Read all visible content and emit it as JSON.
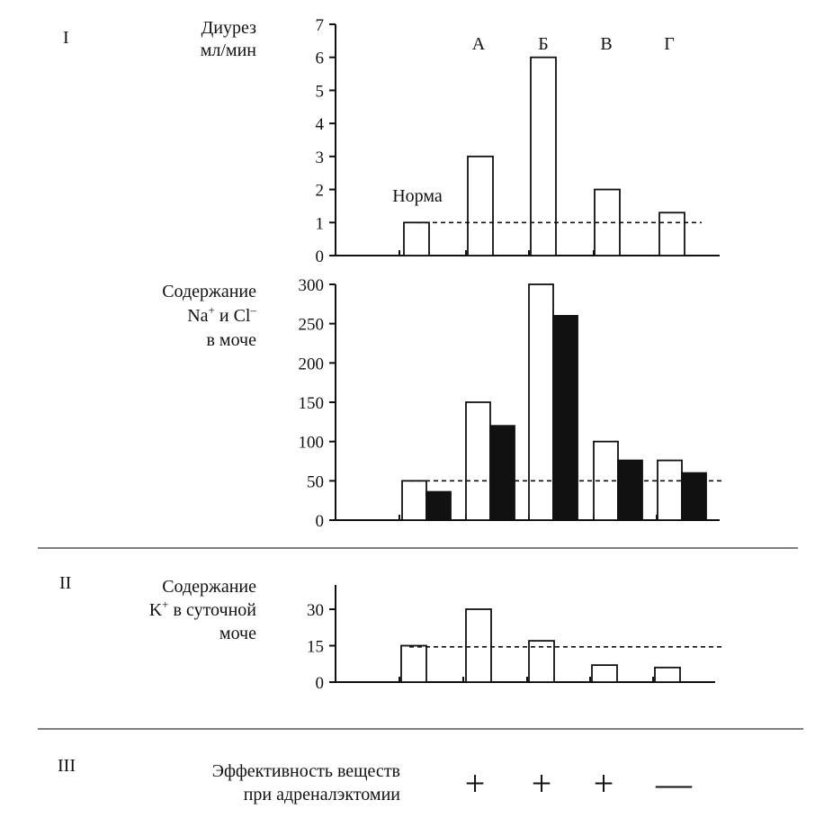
{
  "sections": {
    "one": "I",
    "two": "II",
    "three": "III"
  },
  "panel1": {
    "ylabel_line1": "Диурез",
    "ylabel_line2": "мл/мин",
    "baseline_label": "Норма",
    "group_labels": [
      "А",
      "Б",
      "В",
      "Г"
    ],
    "fills": {
      "white": "#ffffff",
      "black": "#111111"
    }
  },
  "panel2": {
    "ylabel_line1": "Содержание",
    "ylabel_line2_na": "Na",
    "ylabel_line2_sup1": "+",
    "ylabel_line2_mid": " и Cl",
    "ylabel_line2_sup2": "–",
    "ylabel_line3": "в моче"
  },
  "panel3": {
    "ylabel_line1": "Содержание",
    "ylabel_line2_k": "K",
    "ylabel_line2_sup": "+",
    "ylabel_line2_rest": " в  суточной",
    "ylabel_line3": "моче"
  },
  "effectiveness": {
    "label_line1": "Эффективность веществ",
    "label_line2": "при адреналэктомии",
    "marks": [
      "+",
      "+",
      "+",
      "—"
    ]
  },
  "chart_data": [
    {
      "type": "bar",
      "categories": [
        "Норма",
        "А",
        "Б",
        "В",
        "Г"
      ],
      "series": [
        {
          "values": [
            1,
            3,
            6,
            2,
            1.3
          ]
        }
      ],
      "ylim": [
        0,
        7
      ],
      "yticks": [
        0,
        1,
        2,
        3,
        4,
        5,
        6,
        7
      ],
      "reference_line": 1,
      "grid": false
    },
    {
      "type": "bar",
      "categories": [
        "Норма",
        "А",
        "Б",
        "В",
        "Г"
      ],
      "series": [
        {
          "values": [
            50,
            150,
            300,
            100,
            76
          ]
        },
        {
          "values": [
            36,
            120,
            260,
            76,
            60
          ]
        }
      ],
      "ylim": [
        0,
        300
      ],
      "yticks": [
        0,
        50,
        100,
        150,
        200,
        250,
        300
      ],
      "reference_line": 50,
      "grid": false
    },
    {
      "type": "bar",
      "categories": [
        "Норма",
        "А",
        "Б",
        "В",
        "Г"
      ],
      "series": [
        {
          "values": [
            15,
            30,
            17,
            7,
            6
          ]
        }
      ],
      "ylim": [
        0,
        40
      ],
      "yticks": [
        0,
        15,
        30
      ],
      "reference_line": 14.5,
      "grid": false
    }
  ]
}
